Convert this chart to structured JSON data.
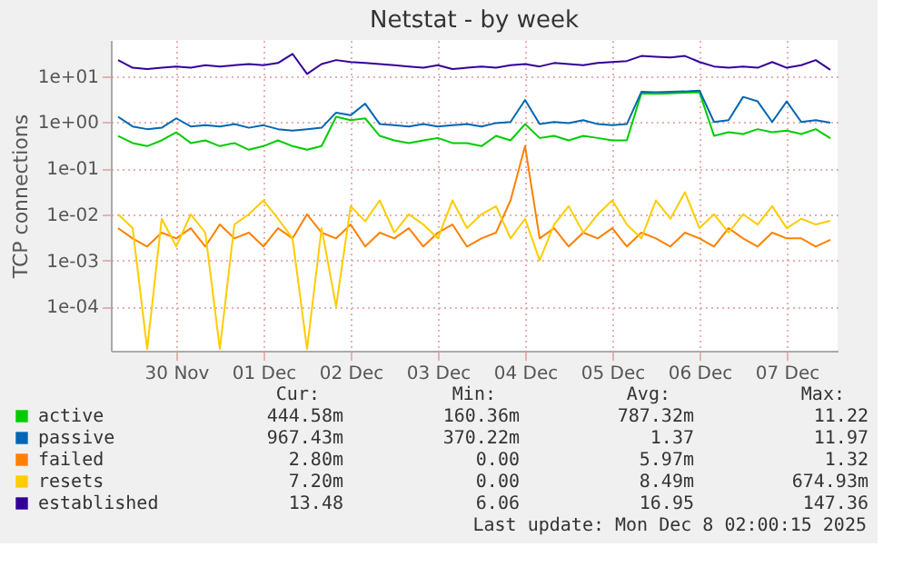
{
  "chart_data": {
    "type": "line",
    "title": "Netstat - by week",
    "ylabel": "TCP connections",
    "log": true,
    "grid": true,
    "legend": "bottom",
    "ylim": [
      1.1e-05,
      60
    ],
    "yticks": [
      {
        "value": 0.0001,
        "label": "1e-04"
      },
      {
        "value": 0.001,
        "label": "1e-03"
      },
      {
        "value": 0.01,
        "label": "1e-02"
      },
      {
        "value": 0.1,
        "label": "1e-01"
      },
      {
        "value": 1,
        "label": "1e+00"
      },
      {
        "value": 10,
        "label": "1e+01"
      }
    ],
    "xlim": [
      "2025-11-29T18:00",
      "2025-12-08T02:00"
    ],
    "xticks": [
      {
        "value": "2025-11-30T12:00",
        "label": "30 Nov"
      },
      {
        "value": "2025-12-01T12:00",
        "label": "01 Dec"
      },
      {
        "value": "2025-12-02T12:00",
        "label": "02 Dec"
      },
      {
        "value": "2025-12-03T12:00",
        "label": "03 Dec"
      },
      {
        "value": "2025-12-04T12:00",
        "label": "04 Dec"
      },
      {
        "value": "2025-12-05T12:00",
        "label": "05 Dec"
      },
      {
        "value": "2025-12-06T12:00",
        "label": "06 Dec"
      },
      {
        "value": "2025-12-07T12:00",
        "label": "07 Dec"
      }
    ],
    "x": [
      "2025-11-29T20:00",
      "2025-11-30T00:00",
      "2025-11-30T04:00",
      "2025-11-30T08:00",
      "2025-11-30T12:00",
      "2025-11-30T16:00",
      "2025-11-30T20:00",
      "2025-12-01T00:00",
      "2025-12-01T04:00",
      "2025-12-01T08:00",
      "2025-12-01T12:00",
      "2025-12-01T16:00",
      "2025-12-01T20:00",
      "2025-12-02T00:00",
      "2025-12-02T04:00",
      "2025-12-02T08:00",
      "2025-12-02T12:00",
      "2025-12-02T16:00",
      "2025-12-02T20:00",
      "2025-12-03T00:00",
      "2025-12-03T04:00",
      "2025-12-03T08:00",
      "2025-12-03T12:00",
      "2025-12-03T16:00",
      "2025-12-03T20:00",
      "2025-12-04T00:00",
      "2025-12-04T04:00",
      "2025-12-04T08:00",
      "2025-12-04T12:00",
      "2025-12-04T16:00",
      "2025-12-04T20:00",
      "2025-12-05T00:00",
      "2025-12-05T04:00",
      "2025-12-05T08:00",
      "2025-12-05T12:00",
      "2025-12-05T16:00",
      "2025-12-05T20:00",
      "2025-12-06T00:00",
      "2025-12-06T04:00",
      "2025-12-06T08:00",
      "2025-12-06T12:00",
      "2025-12-06T16:00",
      "2025-12-06T20:00",
      "2025-12-07T00:00",
      "2025-12-07T04:00",
      "2025-12-07T08:00",
      "2025-12-07T12:00",
      "2025-12-07T16:00",
      "2025-12-07T20:00",
      "2025-12-08T00:00"
    ],
    "series": [
      {
        "name": "active",
        "color": "#00cc00",
        "values": [
          0.5,
          0.35,
          0.3,
          0.4,
          0.6,
          0.35,
          0.4,
          0.3,
          0.35,
          0.25,
          0.3,
          0.4,
          0.3,
          0.25,
          0.3,
          1.3,
          1.1,
          1.2,
          0.5,
          0.4,
          0.35,
          0.4,
          0.45,
          0.35,
          0.35,
          0.3,
          0.5,
          0.4,
          0.9,
          0.45,
          0.5,
          0.4,
          0.5,
          0.45,
          0.4,
          0.4,
          4.2,
          4.1,
          4.2,
          4.3,
          4.4,
          0.5,
          0.6,
          0.55,
          0.7,
          0.6,
          0.65,
          0.55,
          0.7,
          0.445
        ]
      },
      {
        "name": "passive",
        "color": "#0066b3",
        "values": [
          1.3,
          0.8,
          0.7,
          0.75,
          1.2,
          0.8,
          0.85,
          0.8,
          0.9,
          0.75,
          0.85,
          0.7,
          0.65,
          0.7,
          0.75,
          1.6,
          1.4,
          2.5,
          0.9,
          0.85,
          0.8,
          0.9,
          0.8,
          0.85,
          0.9,
          0.8,
          0.95,
          1.0,
          3.0,
          0.9,
          1.0,
          0.95,
          1.1,
          0.9,
          0.85,
          0.9,
          4.5,
          4.4,
          4.5,
          4.6,
          4.8,
          1.0,
          1.1,
          3.5,
          2.8,
          1.0,
          2.8,
          1.0,
          1.1,
          0.967
        ]
      },
      {
        "name": "failed",
        "color": "#ff8000",
        "values": [
          0.005,
          0.003,
          0.002,
          0.004,
          0.003,
          0.005,
          0.002,
          0.006,
          0.003,
          0.004,
          0.002,
          0.005,
          0.003,
          0.01,
          0.004,
          0.003,
          0.006,
          0.002,
          0.004,
          0.003,
          0.005,
          0.002,
          0.004,
          0.006,
          0.002,
          0.003,
          0.004,
          0.02,
          0.3,
          0.003,
          0.005,
          0.002,
          0.004,
          0.003,
          0.005,
          0.002,
          0.004,
          0.003,
          0.002,
          0.004,
          0.003,
          0.002,
          0.005,
          0.003,
          0.002,
          0.004,
          0.003,
          0.003,
          0.002,
          0.0028
        ]
      },
      {
        "name": "resets",
        "color": "#ffcc00",
        "values": [
          0.01,
          0.005,
          1.2e-05,
          0.008,
          0.002,
          0.01,
          0.004,
          1.2e-05,
          0.006,
          0.01,
          0.02,
          0.008,
          0.003,
          1.2e-05,
          0.005,
          0.0001,
          0.015,
          0.007,
          0.02,
          0.004,
          0.01,
          0.006,
          0.003,
          0.02,
          0.005,
          0.01,
          0.015,
          0.003,
          0.008,
          0.001,
          0.006,
          0.015,
          0.004,
          0.01,
          0.02,
          0.006,
          0.003,
          0.02,
          0.008,
          0.03,
          0.005,
          0.01,
          0.004,
          0.01,
          0.006,
          0.015,
          0.005,
          0.008,
          0.006,
          0.0072
        ]
      },
      {
        "name": "established",
        "color": "#330099",
        "values": [
          22,
          15,
          14,
          15,
          16,
          15,
          17,
          16,
          17,
          18,
          17,
          19,
          30,
          11,
          18,
          22,
          20,
          19,
          18,
          17,
          16,
          15,
          17,
          14,
          15,
          16,
          15,
          17,
          18,
          16,
          19,
          18,
          17,
          19,
          20,
          21,
          27,
          26,
          25,
          27,
          20,
          16,
          15,
          16,
          15,
          20,
          15,
          17,
          22,
          13.48
        ]
      }
    ],
    "annotations": [
      "Cur:",
      "Min:",
      "Avg:",
      "Max:",
      "444.58m",
      "160.36m",
      "787.32m",
      "11.22",
      "967.43m",
      "370.22m",
      "1.37",
      "11.97",
      "2.80m",
      "0.00",
      "5.97m",
      "1.32",
      "7.20m",
      "0.00",
      "8.49m",
      "674.93m",
      "13.48",
      "6.06",
      "16.95",
      "147.36",
      "Last update: Mon Dec  8 02:00:15 2025"
    ]
  }
}
